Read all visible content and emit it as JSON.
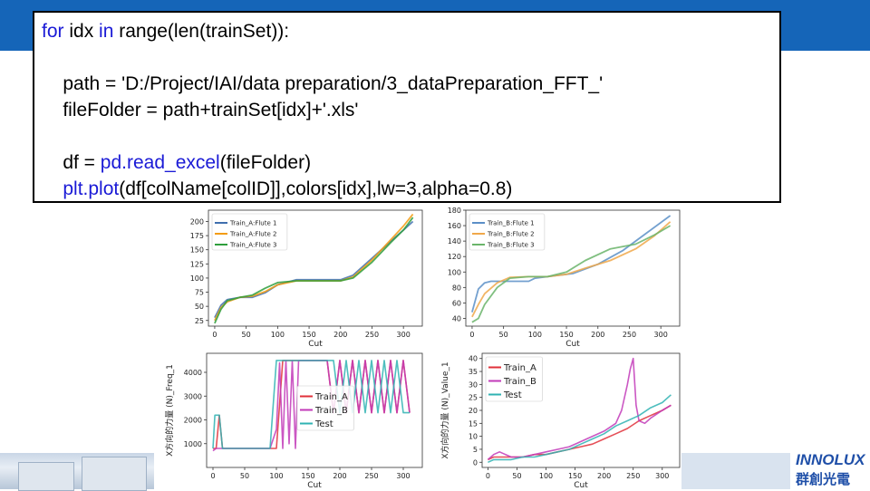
{
  "slide": {
    "code_lines": [
      {
        "segments": [
          {
            "t": "for",
            "c": "kw"
          },
          {
            "t": " idx ",
            "c": ""
          },
          {
            "t": "in",
            "c": "kw"
          },
          {
            "t": " range(len(trainSet)):",
            "c": ""
          }
        ]
      },
      {
        "segments": []
      },
      {
        "segments": [
          {
            "t": "    path = 'D:/Project/IAI/data preparation/3_dataPreparation_FFT_'",
            "c": ""
          }
        ]
      },
      {
        "segments": [
          {
            "t": "    fileFolder = path+trainSet[idx]+'.xls'",
            "c": ""
          }
        ]
      },
      {
        "segments": []
      },
      {
        "segments": [
          {
            "t": "    df = ",
            "c": ""
          },
          {
            "t": "pd.read_excel",
            "c": "fn"
          },
          {
            "t": "(fileFolder)",
            "c": ""
          }
        ]
      },
      {
        "segments": [
          {
            "t": "    ",
            "c": ""
          },
          {
            "t": "plt.plot",
            "c": "fn"
          },
          {
            "t": "(df[colName[colID]],colors[idx],lw=3,alpha=0.8)",
            "c": ""
          }
        ]
      }
    ],
    "logo": {
      "brand": "INNOLUX",
      "brand_cn": "群創光電"
    },
    "colors": {
      "topbar": "#1565b8",
      "keyword": "#1a1ad6"
    }
  },
  "chart_data": [
    {
      "type": "line",
      "xlabel": "Cut",
      "ylabel": "",
      "xlim": [
        -10,
        330
      ],
      "ylim": [
        15,
        220
      ],
      "xticks": [
        0,
        50,
        100,
        150,
        200,
        250,
        300
      ],
      "yticks": [
        25,
        50,
        75,
        100,
        125,
        150,
        175,
        200
      ],
      "legend": "top-left",
      "series": [
        {
          "name": "Train_A:Flute 1",
          "color": "#3f6fae",
          "x": [
            0,
            10,
            20,
            40,
            60,
            80,
            100,
            130,
            160,
            200,
            220,
            250,
            280,
            300,
            315
          ],
          "y": [
            30,
            52,
            62,
            66,
            66,
            74,
            88,
            97,
            97,
            97,
            105,
            135,
            165,
            185,
            200
          ]
        },
        {
          "name": "Train_A:Flute 2",
          "color": "#f39c12",
          "x": [
            0,
            10,
            20,
            40,
            60,
            80,
            100,
            130,
            160,
            200,
            220,
            250,
            280,
            300,
            315
          ],
          "y": [
            25,
            48,
            58,
            66,
            68,
            76,
            88,
            95,
            95,
            95,
            102,
            132,
            168,
            192,
            213
          ]
        },
        {
          "name": "Train_A:Flute 3",
          "color": "#2e9e3c",
          "x": [
            0,
            10,
            20,
            40,
            60,
            80,
            100,
            130,
            160,
            200,
            220,
            250,
            280,
            300,
            315
          ],
          "y": [
            20,
            45,
            60,
            66,
            70,
            82,
            92,
            95,
            95,
            95,
            100,
            128,
            163,
            185,
            207
          ]
        }
      ]
    },
    {
      "type": "line",
      "xlabel": "Cut",
      "ylabel": "",
      "xlim": [
        -10,
        330
      ],
      "ylim": [
        30,
        180
      ],
      "xticks": [
        0,
        50,
        100,
        150,
        200,
        250,
        300
      ],
      "yticks": [
        40,
        60,
        80,
        100,
        120,
        140,
        160,
        180
      ],
      "legend": "top-left",
      "series": [
        {
          "name": "Train_B:Flute 1",
          "color": "#5b8fc7",
          "x": [
            0,
            10,
            20,
            30,
            60,
            90,
            100,
            130,
            160,
            200,
            240,
            280,
            315
          ],
          "y": [
            48,
            78,
            86,
            88,
            88,
            88,
            92,
            95,
            98,
            110,
            128,
            152,
            173
          ]
        },
        {
          "name": "Train_B:Flute 2",
          "color": "#f0a84a",
          "x": [
            0,
            10,
            20,
            40,
            60,
            90,
            120,
            150,
            180,
            220,
            260,
            290,
            315
          ],
          "y": [
            42,
            58,
            72,
            86,
            93,
            94,
            94,
            97,
            105,
            115,
            130,
            147,
            165
          ]
        },
        {
          "name": "Train_B:Flute 3",
          "color": "#6ab46a",
          "x": [
            0,
            10,
            20,
            40,
            60,
            90,
            120,
            150,
            180,
            220,
            260,
            290,
            315
          ],
          "y": [
            35,
            40,
            58,
            80,
            92,
            94,
            94,
            100,
            115,
            130,
            136,
            148,
            160
          ]
        }
      ]
    },
    {
      "type": "line",
      "xlabel": "Cut",
      "ylabel": "X方向的力量 (N)_Freq_1",
      "xlim": [
        -10,
        330
      ],
      "ylim": [
        0,
        4800
      ],
      "xticks": [
        0,
        50,
        100,
        150,
        200,
        250,
        300
      ],
      "yticks": [
        1000,
        2000,
        3000,
        4000
      ],
      "legend": "center-right",
      "series": [
        {
          "name": "Train_A",
          "color": "#e0303a",
          "x": [
            0,
            5,
            10,
            15,
            20,
            25,
            30,
            40,
            50,
            60,
            70,
            80,
            90,
            100,
            110,
            120,
            130,
            140,
            150,
            160,
            170,
            180,
            190,
            200,
            210,
            220,
            230,
            240,
            250,
            260,
            270,
            280,
            290,
            300,
            310
          ],
          "y": [
            800,
            800,
            2200,
            800,
            800,
            800,
            800,
            800,
            800,
            800,
            800,
            800,
            800,
            800,
            4500,
            4500,
            4500,
            4500,
            4500,
            4500,
            4500,
            4500,
            2300,
            4500,
            2300,
            4500,
            2300,
            4500,
            2300,
            4500,
            2300,
            4500,
            2300,
            4500,
            2300
          ]
        },
        {
          "name": "Train_B",
          "color": "#c23ab8",
          "x": [
            0,
            5,
            10,
            20,
            30,
            40,
            50,
            60,
            70,
            80,
            90,
            100,
            105,
            110,
            115,
            120,
            125,
            130,
            135,
            140,
            150,
            160,
            170,
            180,
            190,
            200,
            210,
            220,
            230,
            240,
            250,
            260,
            270,
            280,
            290,
            300,
            310
          ],
          "y": [
            700,
            800,
            800,
            800,
            800,
            800,
            800,
            800,
            800,
            800,
            800,
            1600,
            4400,
            800,
            4500,
            1000,
            4500,
            800,
            4500,
            4500,
            4500,
            4500,
            4500,
            4500,
            2300,
            4500,
            2300,
            4500,
            2300,
            4500,
            2300,
            4500,
            2300,
            4500,
            2300,
            4500,
            2300
          ]
        },
        {
          "name": "Test",
          "color": "#2fb3b3",
          "x": [
            0,
            3,
            6,
            10,
            15,
            20,
            30,
            40,
            50,
            60,
            70,
            80,
            90,
            100,
            110,
            120,
            130,
            140,
            150,
            160,
            170,
            180,
            190,
            200,
            210,
            220,
            230,
            240,
            250,
            260,
            270,
            280,
            290,
            300,
            310
          ],
          "y": [
            800,
            2200,
            2200,
            2200,
            800,
            800,
            800,
            800,
            800,
            800,
            800,
            800,
            800,
            4500,
            4500,
            4500,
            4500,
            4500,
            4500,
            4500,
            4500,
            4500,
            4500,
            2300,
            4500,
            2300,
            4500,
            2300,
            4500,
            2300,
            4500,
            2300,
            4500,
            2300,
            2300
          ]
        }
      ]
    },
    {
      "type": "line",
      "xlabel": "Cut",
      "ylabel": "X方向的力量 (N)_Value_1",
      "xlim": [
        -10,
        330
      ],
      "ylim": [
        -2,
        42
      ],
      "xticks": [
        0,
        50,
        100,
        150,
        200,
        250,
        300
      ],
      "yticks": [
        0,
        5,
        10,
        15,
        20,
        25,
        30,
        35,
        40
      ],
      "legend": "top-left",
      "series": [
        {
          "name": "Train_A",
          "color": "#e0303a",
          "x": [
            0,
            10,
            20,
            40,
            60,
            80,
            100,
            120,
            140,
            160,
            180,
            200,
            220,
            240,
            260,
            280,
            300,
            315
          ],
          "y": [
            1,
            2,
            2,
            2,
            2,
            3,
            3,
            4,
            5,
            6,
            7,
            9,
            11,
            13,
            16,
            18,
            20,
            22
          ]
        },
        {
          "name": "Train_B",
          "color": "#c23ab8",
          "x": [
            0,
            10,
            20,
            40,
            60,
            80,
            100,
            120,
            140,
            160,
            180,
            200,
            220,
            230,
            240,
            245,
            250,
            255,
            260,
            270,
            280,
            300,
            315
          ],
          "y": [
            1,
            3,
            4,
            2,
            2,
            3,
            4,
            5,
            6,
            8,
            10,
            12,
            15,
            20,
            30,
            36,
            40,
            22,
            16,
            15,
            17,
            20,
            22
          ]
        },
        {
          "name": "Test",
          "color": "#2fb3b3",
          "x": [
            0,
            10,
            20,
            40,
            60,
            80,
            100,
            120,
            140,
            160,
            180,
            200,
            220,
            240,
            260,
            280,
            300,
            315
          ],
          "y": [
            0,
            1,
            1,
            1,
            2,
            2,
            3,
            4,
            5,
            7,
            9,
            11,
            14,
            16,
            18,
            21,
            23,
            26
          ]
        }
      ]
    }
  ]
}
